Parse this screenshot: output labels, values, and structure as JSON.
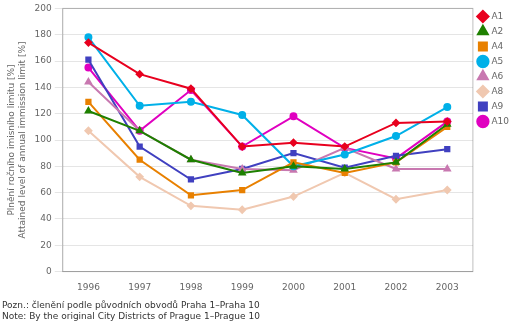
{
  "chart_data": {
    "type": "line",
    "x": [
      1996,
      1997,
      1998,
      1999,
      2000,
      2001,
      2002,
      2003
    ],
    "series": [
      {
        "name": "A1",
        "color": "#e8001e",
        "marker": "diamond",
        "values": [
          174,
          150,
          139,
          95,
          98,
          95,
          113,
          114
        ]
      },
      {
        "name": "A2",
        "color": "#1e8000",
        "marker": "triangle",
        "values": [
          122,
          107,
          85,
          75,
          80,
          78,
          83,
          112
        ]
      },
      {
        "name": "A4",
        "color": "#e88000",
        "marker": "square",
        "values": [
          129,
          85,
          58,
          62,
          83,
          75,
          83,
          110
        ]
      },
      {
        "name": "A5",
        "color": "#00b0e8",
        "marker": "circle",
        "values": [
          178,
          126,
          129,
          119,
          80,
          89,
          103,
          125
        ]
      },
      {
        "name": "A6",
        "color": "#c878b0",
        "marker": "triangle",
        "values": [
          144,
          107,
          85,
          78,
          77,
          94,
          78,
          78
        ]
      },
      {
        "name": "A8",
        "color": "#f0c8b0",
        "marker": "diamond",
        "values": [
          107,
          72,
          50,
          47,
          57,
          75,
          55,
          62
        ]
      },
      {
        "name": "A9",
        "color": "#4040c0",
        "marker": "square",
        "values": [
          161,
          95,
          70,
          78,
          90,
          79,
          88,
          93
        ]
      },
      {
        "name": "A10",
        "color": "#e000c0",
        "marker": "circle",
        "values": [
          155,
          107,
          138,
          95,
          118,
          94,
          86,
          114
        ]
      }
    ],
    "ylabel": [
      "Plnění ročního imisního limitu [%]",
      "Attained level of annual immission limit [%]"
    ],
    "annotations": [
      "Pozn.: členění podle původních obvodů Praha 1–Praha 10",
      "Note: By the original City Districts of Prague 1–Prague 10"
    ],
    "xlim": [
      1995.5,
      2003.5
    ],
    "xticks": [
      1996,
      1997,
      1998,
      1999,
      2000,
      2001,
      2002,
      2003
    ],
    "ylim": [
      0,
      200
    ],
    "yticks": [
      0,
      20,
      40,
      60,
      80,
      100,
      120,
      140,
      160,
      180,
      200
    ],
    "grid": "y",
    "legend": "upper right"
  }
}
